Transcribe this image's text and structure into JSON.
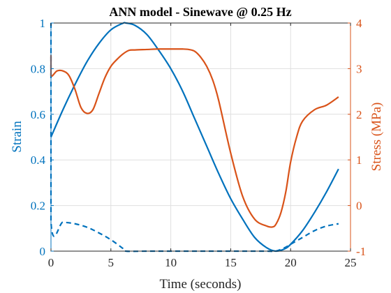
{
  "chart_data": {
    "type": "line",
    "title": "ANN model - Sinewave @ 0.25 Hz",
    "xlabel": "Time (seconds)",
    "ylabel_left": "Strain",
    "ylabel_right": "Stress (MPa)",
    "xlim": [
      0,
      25
    ],
    "ylim_left": [
      0,
      1
    ],
    "ylim_right": [
      -1,
      4
    ],
    "x_ticks": [
      "0",
      "5",
      "10",
      "15",
      "20",
      "25"
    ],
    "y_left_ticks": [
      "0",
      "0.2",
      "0.4",
      "0.6",
      "0.8",
      "1"
    ],
    "y_right_ticks": [
      "-1",
      "0",
      "1",
      "2",
      "3",
      "4"
    ],
    "grid": true,
    "colors": {
      "left_axis": "#0072BD",
      "right_axis": "#D95319",
      "grid": "#dfdfdf"
    },
    "series": [
      {
        "axis": "left",
        "style": "solid",
        "color": "#0072BD",
        "x": [
          0,
          1,
          2,
          3,
          4,
          5,
          6,
          6.25,
          7,
          8,
          9,
          10,
          11,
          12,
          13,
          14,
          15,
          16,
          17,
          18,
          18.75,
          19.5,
          20,
          21,
          22,
          23,
          24
        ],
        "y": [
          0.5,
          0.62,
          0.73,
          0.83,
          0.91,
          0.97,
          0.999,
          1.0,
          0.99,
          0.95,
          0.88,
          0.8,
          0.7,
          0.58,
          0.46,
          0.34,
          0.23,
          0.14,
          0.06,
          0.015,
          0.0,
          0.01,
          0.03,
          0.09,
          0.17,
          0.26,
          0.36
        ]
      },
      {
        "axis": "left",
        "style": "dashed",
        "color": "#0072BD",
        "x": [
          0,
          0,
          1,
          2,
          3,
          4,
          5,
          6,
          6.25,
          8,
          10,
          12,
          14,
          16,
          18,
          18.75,
          19.5,
          20,
          21,
          22,
          23,
          24
        ],
        "y": [
          1.0,
          0.13,
          0.127,
          0.12,
          0.105,
          0.08,
          0.05,
          0.012,
          0.0,
          0.0,
          0.0,
          0.0,
          0.0,
          0.0,
          0.0,
          0.0,
          0.015,
          0.03,
          0.06,
          0.09,
          0.11,
          0.12
        ]
      },
      {
        "axis": "right",
        "style": "solid",
        "color": "#D95319",
        "x": [
          0,
          0,
          0.5,
          1,
          1.5,
          2,
          2.5,
          3,
          3.5,
          4,
          4.5,
          5,
          5.5,
          6,
          6.5,
          7,
          8,
          9,
          10,
          11,
          11.5,
          12,
          12.5,
          13,
          13.5,
          14,
          15,
          16,
          17,
          18,
          18.5,
          18.8,
          19.2,
          19.6,
          20,
          20.5,
          21,
          22,
          23,
          24
        ],
        "y": [
          3.3,
          2.85,
          2.95,
          2.95,
          2.85,
          2.55,
          2.15,
          2.02,
          2.1,
          2.45,
          2.8,
          3.05,
          3.2,
          3.32,
          3.4,
          3.41,
          3.42,
          3.43,
          3.43,
          3.43,
          3.42,
          3.38,
          3.25,
          3.05,
          2.75,
          2.3,
          1.15,
          0.2,
          -0.3,
          -0.45,
          -0.47,
          -0.4,
          -0.15,
          0.3,
          0.95,
          1.5,
          1.85,
          2.1,
          2.2,
          2.38
        ]
      }
    ]
  }
}
